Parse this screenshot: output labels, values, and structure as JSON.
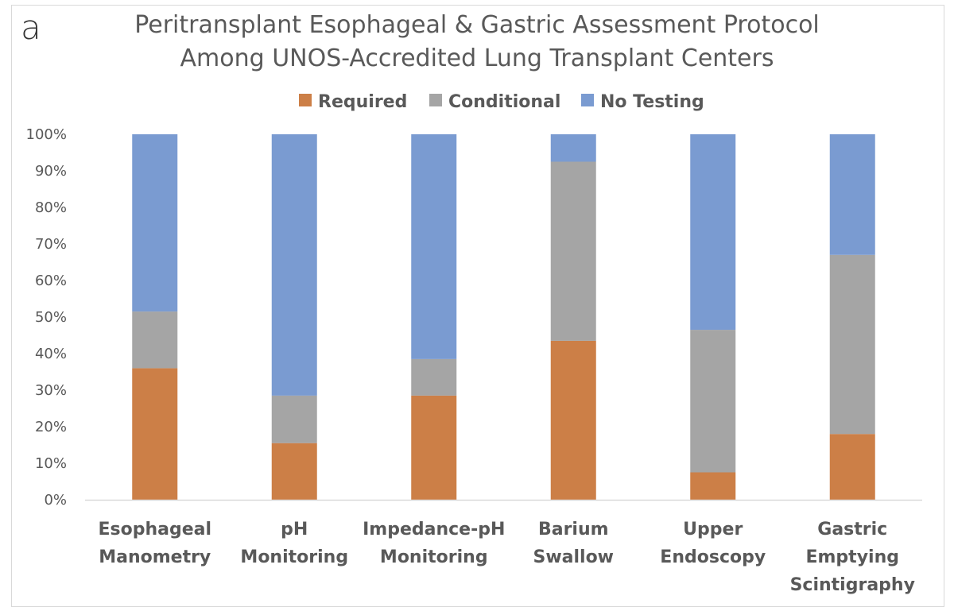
{
  "panel_label": "a",
  "chart_data": {
    "type": "bar",
    "stacked": true,
    "title_lines": [
      "Peritransplant Esophageal & Gastric Assessment Protocol",
      "Among UNOS-Accredited Lung Transplant Centers"
    ],
    "categories": [
      [
        "Esophageal",
        "Manometry"
      ],
      [
        "pH",
        "Monitoring"
      ],
      [
        "Impedance-pH",
        "Monitoring"
      ],
      [
        "Barium",
        "Swallow"
      ],
      [
        "Upper",
        "Endoscopy"
      ],
      [
        "Gastric",
        "Emptying",
        "Scintigraphy"
      ]
    ],
    "series": [
      {
        "name": "Required",
        "color": "#cc7f47",
        "values": [
          36,
          15.5,
          28.5,
          43.5,
          7.5,
          18
        ]
      },
      {
        "name": "Conditional",
        "color": "#a5a5a5",
        "values": [
          15.5,
          13,
          10,
          49,
          39,
          49
        ]
      },
      {
        "name": "No Testing",
        "color": "#7a9bd1",
        "values": [
          48.5,
          71.5,
          61.5,
          7.5,
          53.5,
          33
        ]
      }
    ],
    "ylim": [
      0,
      100
    ],
    "yticks": [
      "0%",
      "10%",
      "20%",
      "30%",
      "40%",
      "50%",
      "60%",
      "70%",
      "80%",
      "90%",
      "100%"
    ],
    "gridlines": false,
    "legend_position": "top-center",
    "xlabel": "",
    "ylabel": ""
  }
}
